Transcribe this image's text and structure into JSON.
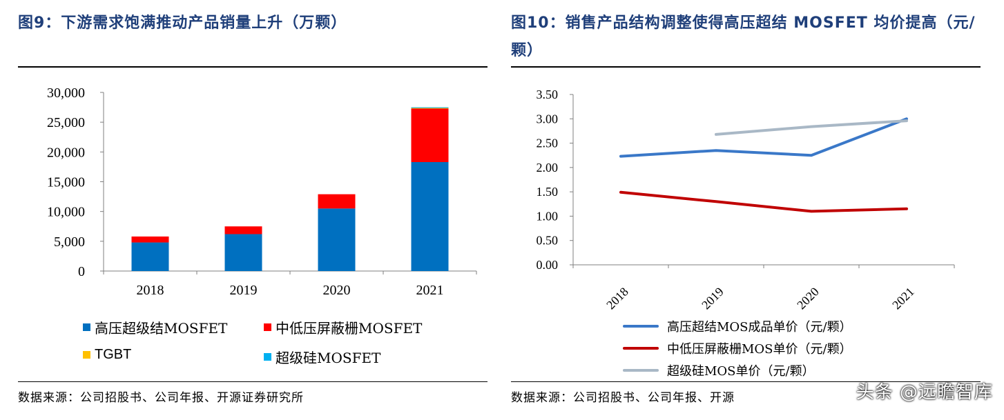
{
  "left": {
    "title": "图9：下游需求饱满推动产品销量上升（万颗）",
    "source": "数据来源：公司招股书、公司年报、开源证券研究所",
    "legend": [
      {
        "label": "高压超级结MOSFET",
        "color": "#0070c0"
      },
      {
        "label": "中低压屏蔽栅MOSFET",
        "color": "#ff0000"
      },
      {
        "label": "TGBT",
        "color": "#ffc000"
      },
      {
        "label": "超级硅MOSFET",
        "color": "#00b0f0"
      }
    ]
  },
  "right": {
    "title": "图10：销售产品结构调整使得高压超结 MOSFET 均价提高（元/颗）",
    "source": "数据来源：公司招股书、公司年报、开源",
    "legend": [
      {
        "label": "高压超结MOS成品单价（元/颗）",
        "color": "#3a78c8"
      },
      {
        "label": "中低压屏蔽栅MOS单价（元/颗）",
        "color": "#c00000"
      },
      {
        "label": "超级硅MOS单价（元/颗）",
        "color": "#a9b8c6"
      }
    ]
  },
  "watermark": "头条 @远瞻智库",
  "chart_data": [
    {
      "type": "bar",
      "stacked": true,
      "categories": [
        "2018",
        "2019",
        "2020",
        "2021"
      ],
      "series": [
        {
          "name": "高压超级结MOSFET",
          "values": [
            4800,
            6200,
            10500,
            18300
          ],
          "color": "#0070c0"
        },
        {
          "name": "中低压屏蔽栅MOSFET",
          "values": [
            1000,
            1300,
            2400,
            9000
          ],
          "color": "#ff0000"
        },
        {
          "name": "TGBT",
          "values": [
            0,
            0,
            0,
            100
          ],
          "color": "#ffc000"
        },
        {
          "name": "超级硅MOSFET",
          "values": [
            0,
            0,
            0,
            100
          ],
          "color": "#00b0f0"
        }
      ],
      "ylim": [
        0,
        30000
      ],
      "yticks": [
        "0",
        "5,000",
        "10,000",
        "15,000",
        "20,000",
        "25,000",
        "30,000"
      ],
      "legend_position": "bottom",
      "grid": false
    },
    {
      "type": "line",
      "categories": [
        "2018",
        "2019",
        "2020",
        "2021"
      ],
      "series": [
        {
          "name": "高压超结MOS成品单价（元/颗）",
          "values": [
            2.23,
            2.35,
            2.25,
            3.0
          ],
          "color": "#3a78c8"
        },
        {
          "name": "中低压屏蔽栅MOS单价（元/颗）",
          "values": [
            1.49,
            1.3,
            1.1,
            1.15
          ],
          "color": "#c00000"
        },
        {
          "name": "超级硅MOS单价（元/颗）",
          "values": [
            null,
            2.68,
            2.84,
            2.96
          ],
          "color": "#a9b8c6"
        }
      ],
      "ylim": [
        0,
        3.5
      ],
      "yticks": [
        "0.00",
        "0.50",
        "1.00",
        "1.50",
        "2.00",
        "2.50",
        "3.00",
        "3.50"
      ],
      "legend_position": "bottom",
      "grid": false
    }
  ]
}
